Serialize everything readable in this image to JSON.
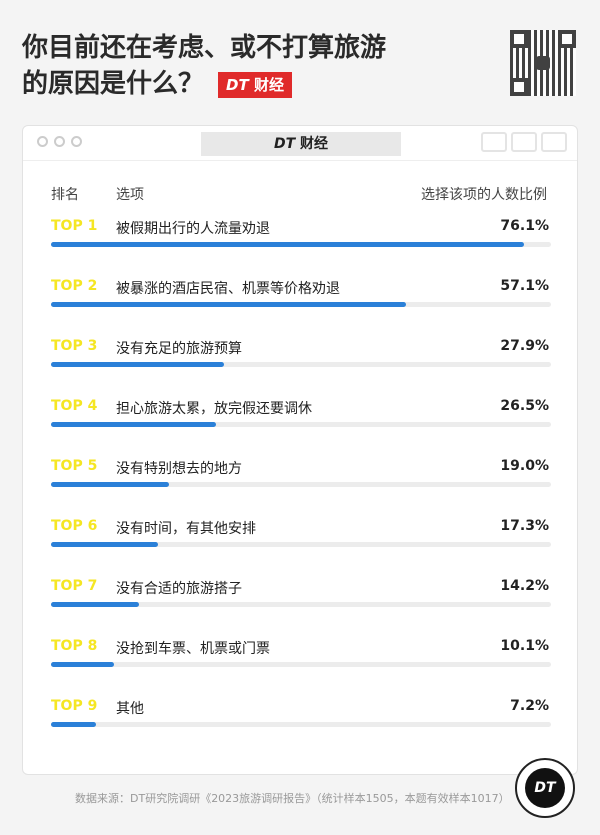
{
  "title": {
    "line1": "你目前还在考虑、或不打算旅游",
    "line2": "的原因是什么？",
    "brand_dt": "DT",
    "brand_cn": "财经"
  },
  "window": {
    "title_dt": "DT",
    "title_cn": "财经"
  },
  "chart_data": {
    "type": "bar",
    "orientation": "horizontal",
    "columns": {
      "rank": "排名",
      "option": "选项",
      "value": "选择该项的人数比例"
    },
    "ranks": [
      "TOP 1",
      "TOP 2",
      "TOP 3",
      "TOP 4",
      "TOP 5",
      "TOP 6",
      "TOP 7",
      "TOP 8",
      "TOP 9"
    ],
    "categories": [
      "被假期出行的人流量劝退",
      "被暴涨的酒店民宿、机票等价格劝退",
      "没有充足的旅游预算",
      "担心旅游太累，放完假还要调休",
      "没有特别想去的地方",
      "没有时间，有其他安排",
      "没有合适的旅游搭子",
      "没抢到车票、机票或门票",
      "其他"
    ],
    "values": [
      76.1,
      57.1,
      27.9,
      26.5,
      19.0,
      17.3,
      14.2,
      10.1,
      7.2
    ],
    "labels": [
      "76.1%",
      "57.1%",
      "27.9%",
      "26.5%",
      "19.0%",
      "17.3%",
      "14.2%",
      "10.1%",
      "7.2%"
    ],
    "colors": {
      "bar": "#2b80d8",
      "track": "#ececec",
      "rank": "#f5e623"
    }
  },
  "footer": {
    "source": "数据来源：DT研究院调研《2023旅游调研报告》（统计样本1505，本题有效样本1017）",
    "logo": "DT"
  }
}
